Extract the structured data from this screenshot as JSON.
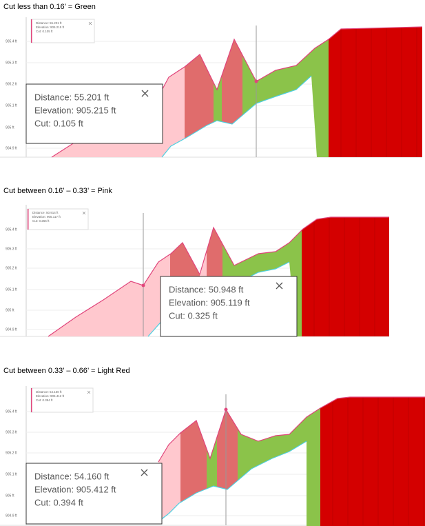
{
  "panels": [
    {
      "heading": "Cut less than 0.16’ = Green",
      "yticks": [
        "905.4 ft",
        "905.3 ft",
        "905.2 ft",
        "905.1 ft",
        "905 ft",
        "904.9 ft"
      ],
      "small": {
        "distance": "Distance: 55.201 ft",
        "elevation": "Elevation: 905.215 ft",
        "cut": "Cut: 0.105 ft"
      },
      "large": {
        "distance": "Distance: 55.201 ft",
        "elevation": "Elevation: 905.215 ft",
        "cut": "Cut: 0.105 ft"
      }
    },
    {
      "heading": "Cut between 0.16’ – 0.33’ = Pink",
      "yticks": [
        "905.4 ft",
        "905.3 ft",
        "905.2 ft",
        "905.1 ft",
        "905 ft",
        "904.9 ft"
      ],
      "small": {
        "distance": "Distance: 50.914 ft",
        "elevation": "Elevation: 905.117 ft",
        "cut": "Cut: 0.266 ft"
      },
      "large": {
        "distance": "Distance: 50.948 ft",
        "elevation": "Elevation: 905.119 ft",
        "cut": "Cut: 0.325 ft"
      }
    },
    {
      "heading": "Cut between 0.33’ – 0.66’ = Light Red",
      "yticks": [
        "905.4 ft",
        "905.3 ft",
        "905.2 ft",
        "905.1 ft",
        "905 ft",
        "904.9 ft"
      ],
      "small": {
        "distance": "Distance: 54.160 ft",
        "elevation": "Elevation: 905.412 ft",
        "cut": "Cut: 0.394 ft"
      },
      "large": {
        "distance": "Distance: 54.160 ft",
        "elevation": "Elevation: 905.412 ft",
        "cut": "Cut: 0.394 ft"
      }
    }
  ]
}
